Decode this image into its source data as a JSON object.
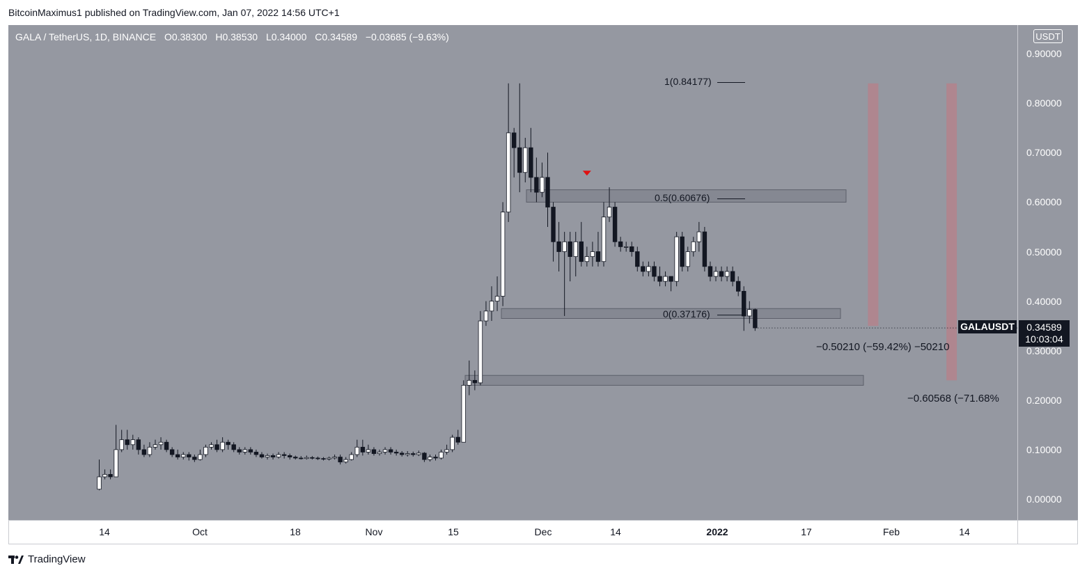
{
  "header": {
    "publisher_line": "BitcoinMaximus1 published on TradingView.com, Jan 07, 2022 14:56 UTC+1"
  },
  "legend": {
    "symbol": "GALA / TetherUS, 1D, BINANCE",
    "open_label": "O",
    "open": "0.38300",
    "high_label": "H",
    "high": "0.38530",
    "low_label": "L",
    "low": "0.34000",
    "close_label": "C",
    "close": "0.34589",
    "change": "−0.03685 (−9.63%)"
  },
  "axis": {
    "currency": "USDT"
  },
  "price_tag": {
    "symbol": "GALAUSDT",
    "price": "0.34589",
    "countdown": "10:03:04"
  },
  "fib_labels": {
    "f1": "1(0.84177)",
    "f05": "0.5(0.60676)",
    "f0": "0(0.37176)"
  },
  "annotations": {
    "target1": "−0.50210 (−59.42%) −50210",
    "target2": "−0.60568 (−71.68%"
  },
  "footer": {
    "brand": "TradingView"
  },
  "colors": {
    "bull": "#ffffff",
    "bear": "#131722",
    "plot_bg": "#9598a1",
    "zone": "#787b86",
    "vline": "#c17a83",
    "marker": "#e01010"
  },
  "chart_data": {
    "type": "candlestick",
    "title": "GALA / TetherUS, 1D, BINANCE",
    "ylabel": "USDT",
    "ylim": [
      -0.04,
      0.94
    ],
    "y_ticks": [
      "0.90000",
      "0.80000",
      "0.70000",
      "0.60000",
      "0.50000",
      "0.40000",
      "0.30000",
      "0.20000",
      "0.10000",
      "0.00000"
    ],
    "x_ticks": [
      {
        "label": "14",
        "day": 0
      },
      {
        "label": "Oct",
        "day": 17
      },
      {
        "label": "18",
        "day": 34
      },
      {
        "label": "Nov",
        "day": 48
      },
      {
        "label": "15",
        "day": 62
      },
      {
        "label": "Dec",
        "day": 78
      },
      {
        "label": "14",
        "day": 91
      },
      {
        "label": "2022",
        "day": 109,
        "bold": true
      },
      {
        "label": "17",
        "day": 125
      },
      {
        "label": "Feb",
        "day": 140
      },
      {
        "label": "14",
        "day": 153
      }
    ],
    "candles": [
      [
        0.02,
        0.045,
        0.018,
        0.08
      ],
      [
        0.045,
        0.05,
        0.04,
        0.06
      ],
      [
        0.05,
        0.045,
        0.04,
        0.06
      ],
      [
        0.045,
        0.1,
        0.045,
        0.15
      ],
      [
        0.1,
        0.12,
        0.095,
        0.14
      ],
      [
        0.12,
        0.11,
        0.1,
        0.14
      ],
      [
        0.11,
        0.12,
        0.1,
        0.13
      ],
      [
        0.12,
        0.1,
        0.09,
        0.125
      ],
      [
        0.1,
        0.09,
        0.085,
        0.11
      ],
      [
        0.09,
        0.105,
        0.085,
        0.115
      ],
      [
        0.105,
        0.11,
        0.1,
        0.12
      ],
      [
        0.11,
        0.115,
        0.1,
        0.125
      ],
      [
        0.115,
        0.1,
        0.095,
        0.12
      ],
      [
        0.1,
        0.09,
        0.085,
        0.105
      ],
      [
        0.09,
        0.085,
        0.08,
        0.1
      ],
      [
        0.085,
        0.09,
        0.08,
        0.095
      ],
      [
        0.09,
        0.085,
        0.078,
        0.095
      ],
      [
        0.085,
        0.08,
        0.075,
        0.09
      ],
      [
        0.08,
        0.09,
        0.078,
        0.1
      ],
      [
        0.09,
        0.105,
        0.085,
        0.11
      ],
      [
        0.105,
        0.11,
        0.1,
        0.115
      ],
      [
        0.11,
        0.1,
        0.095,
        0.12
      ],
      [
        0.1,
        0.115,
        0.095,
        0.125
      ],
      [
        0.115,
        0.11,
        0.1,
        0.12
      ],
      [
        0.11,
        0.1,
        0.095,
        0.115
      ],
      [
        0.1,
        0.095,
        0.09,
        0.105
      ],
      [
        0.095,
        0.1,
        0.09,
        0.105
      ],
      [
        0.1,
        0.095,
        0.09,
        0.105
      ],
      [
        0.095,
        0.09,
        0.085,
        0.1
      ],
      [
        0.09,
        0.085,
        0.082,
        0.095
      ],
      [
        0.085,
        0.088,
        0.08,
        0.092
      ],
      [
        0.088,
        0.085,
        0.08,
        0.092
      ],
      [
        0.085,
        0.09,
        0.082,
        0.095
      ],
      [
        0.09,
        0.088,
        0.082,
        0.095
      ],
      [
        0.088,
        0.085,
        0.08,
        0.092
      ],
      [
        0.085,
        0.083,
        0.08,
        0.088
      ],
      [
        0.083,
        0.082,
        0.08,
        0.087
      ],
      [
        0.082,
        0.084,
        0.08,
        0.088
      ],
      [
        0.084,
        0.083,
        0.08,
        0.087
      ],
      [
        0.083,
        0.082,
        0.079,
        0.086
      ],
      [
        0.082,
        0.081,
        0.078,
        0.085
      ],
      [
        0.081,
        0.083,
        0.078,
        0.086
      ],
      [
        0.083,
        0.085,
        0.08,
        0.09
      ],
      [
        0.085,
        0.075,
        0.07,
        0.09
      ],
      [
        0.075,
        0.08,
        0.072,
        0.085
      ],
      [
        0.08,
        0.09,
        0.078,
        0.095
      ],
      [
        0.09,
        0.105,
        0.085,
        0.12
      ],
      [
        0.105,
        0.095,
        0.088,
        0.12
      ],
      [
        0.095,
        0.1,
        0.09,
        0.11
      ],
      [
        0.1,
        0.092,
        0.088,
        0.105
      ],
      [
        0.092,
        0.095,
        0.088,
        0.1
      ],
      [
        0.095,
        0.1,
        0.09,
        0.105
      ],
      [
        0.1,
        0.095,
        0.09,
        0.105
      ],
      [
        0.095,
        0.093,
        0.088,
        0.1
      ],
      [
        0.093,
        0.09,
        0.086,
        0.097
      ],
      [
        0.09,
        0.092,
        0.086,
        0.097
      ],
      [
        0.092,
        0.09,
        0.086,
        0.096
      ],
      [
        0.09,
        0.093,
        0.087,
        0.098
      ],
      [
        0.093,
        0.08,
        0.075,
        0.095
      ],
      [
        0.08,
        0.085,
        0.076,
        0.09
      ],
      [
        0.085,
        0.083,
        0.078,
        0.09
      ],
      [
        0.083,
        0.095,
        0.08,
        0.1
      ],
      [
        0.095,
        0.1,
        0.09,
        0.11
      ],
      [
        0.1,
        0.125,
        0.095,
        0.13
      ],
      [
        0.125,
        0.115,
        0.11,
        0.14
      ],
      [
        0.115,
        0.23,
        0.115,
        0.24
      ],
      [
        0.23,
        0.24,
        0.21,
        0.28
      ],
      [
        0.24,
        0.235,
        0.22,
        0.26
      ],
      [
        0.235,
        0.36,
        0.23,
        0.38
      ],
      [
        0.36,
        0.38,
        0.35,
        0.4
      ],
      [
        0.38,
        0.4,
        0.36,
        0.43
      ],
      [
        0.4,
        0.41,
        0.38,
        0.45
      ],
      [
        0.41,
        0.58,
        0.39,
        0.6
      ],
      [
        0.58,
        0.74,
        0.56,
        0.84
      ],
      [
        0.74,
        0.71,
        0.65,
        0.75
      ],
      [
        0.71,
        0.66,
        0.62,
        0.84
      ],
      [
        0.66,
        0.71,
        0.64,
        0.73
      ],
      [
        0.71,
        0.65,
        0.62,
        0.75
      ],
      [
        0.65,
        0.62,
        0.6,
        0.69
      ],
      [
        0.62,
        0.65,
        0.61,
        0.68
      ],
      [
        0.65,
        0.59,
        0.55,
        0.7
      ],
      [
        0.59,
        0.52,
        0.48,
        0.6
      ],
      [
        0.52,
        0.5,
        0.46,
        0.56
      ],
      [
        0.5,
        0.52,
        0.37,
        0.54
      ],
      [
        0.52,
        0.49,
        0.44,
        0.54
      ],
      [
        0.49,
        0.52,
        0.45,
        0.54
      ],
      [
        0.52,
        0.48,
        0.47,
        0.56
      ],
      [
        0.48,
        0.49,
        0.47,
        0.51
      ],
      [
        0.49,
        0.5,
        0.47,
        0.52
      ],
      [
        0.5,
        0.48,
        0.47,
        0.54
      ],
      [
        0.48,
        0.57,
        0.47,
        0.6
      ],
      [
        0.57,
        0.59,
        0.56,
        0.63
      ],
      [
        0.59,
        0.52,
        0.51,
        0.6
      ],
      [
        0.52,
        0.51,
        0.5,
        0.53
      ],
      [
        0.51,
        0.51,
        0.5,
        0.52
      ],
      [
        0.51,
        0.5,
        0.49,
        0.52
      ],
      [
        0.5,
        0.47,
        0.46,
        0.51
      ],
      [
        0.47,
        0.46,
        0.45,
        0.48
      ],
      [
        0.46,
        0.47,
        0.45,
        0.48
      ],
      [
        0.47,
        0.45,
        0.44,
        0.48
      ],
      [
        0.45,
        0.44,
        0.43,
        0.47
      ],
      [
        0.44,
        0.45,
        0.43,
        0.46
      ],
      [
        0.45,
        0.44,
        0.42,
        0.45
      ],
      [
        0.44,
        0.53,
        0.43,
        0.54
      ],
      [
        0.53,
        0.47,
        0.46,
        0.54
      ],
      [
        0.47,
        0.5,
        0.46,
        0.51
      ],
      [
        0.5,
        0.52,
        0.49,
        0.53
      ],
      [
        0.52,
        0.54,
        0.5,
        0.56
      ],
      [
        0.54,
        0.47,
        0.46,
        0.55
      ],
      [
        0.47,
        0.45,
        0.44,
        0.48
      ],
      [
        0.45,
        0.46,
        0.44,
        0.47
      ],
      [
        0.46,
        0.45,
        0.44,
        0.47
      ],
      [
        0.45,
        0.46,
        0.44,
        0.47
      ],
      [
        0.46,
        0.44,
        0.43,
        0.47
      ],
      [
        0.44,
        0.42,
        0.41,
        0.45
      ],
      [
        0.42,
        0.37,
        0.34,
        0.43
      ],
      [
        0.37,
        0.383,
        0.355,
        0.4
      ],
      [
        0.383,
        0.346,
        0.34,
        0.385
      ]
    ],
    "fib_levels": [
      0.84177,
      0.60676,
      0.37176
    ],
    "zones": [
      {
        "from_day": 87,
        "to_day": 87,
        "top": 0.625,
        "bottom": 0.6,
        "x_start_day": 78,
        "x_end_day": 128
      },
      {
        "top": 0.385,
        "bottom": 0.365,
        "x_start_day": 72,
        "x_end_day": 127
      },
      {
        "top": 0.25,
        "bottom": 0.23,
        "x_start_day": 67,
        "x_end_day": 131
      }
    ],
    "target_columns": [
      {
        "day": 138,
        "top": 0.84,
        "bottom": 0.35
      },
      {
        "day": 152,
        "top": 0.84,
        "bottom": 0.24
      }
    ],
    "marker_day": 87,
    "marker_price": 0.655
  }
}
